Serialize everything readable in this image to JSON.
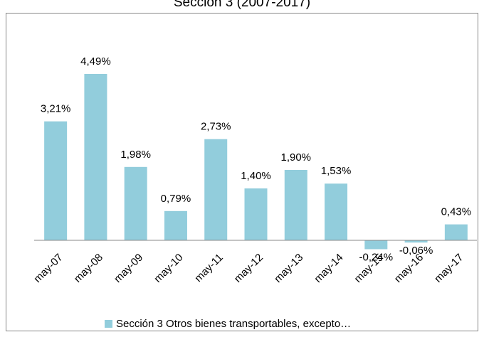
{
  "chart_data": {
    "type": "bar",
    "title": "Sección 3 (2007-2017)",
    "categories": [
      "may-07",
      "may-08",
      "may-09",
      "may-10",
      "may-11",
      "may-12",
      "may-13",
      "may-14",
      "may-15",
      "may-16",
      "may-17"
    ],
    "series": [
      {
        "name": "Sección 3 Otros bienes transportables, excepto…",
        "color": "#92cddc",
        "values": [
          3.21,
          4.49,
          1.98,
          0.79,
          2.73,
          1.4,
          1.9,
          1.53,
          -0.24,
          -0.06,
          0.43
        ],
        "value_labels": [
          "3,21%",
          "4,49%",
          "1,98%",
          "0,79%",
          "2,73%",
          "1,40%",
          "1,90%",
          "1,53%",
          "-0,24%",
          "-0,06%",
          "0,43%"
        ]
      }
    ],
    "legend": "bottom"
  }
}
